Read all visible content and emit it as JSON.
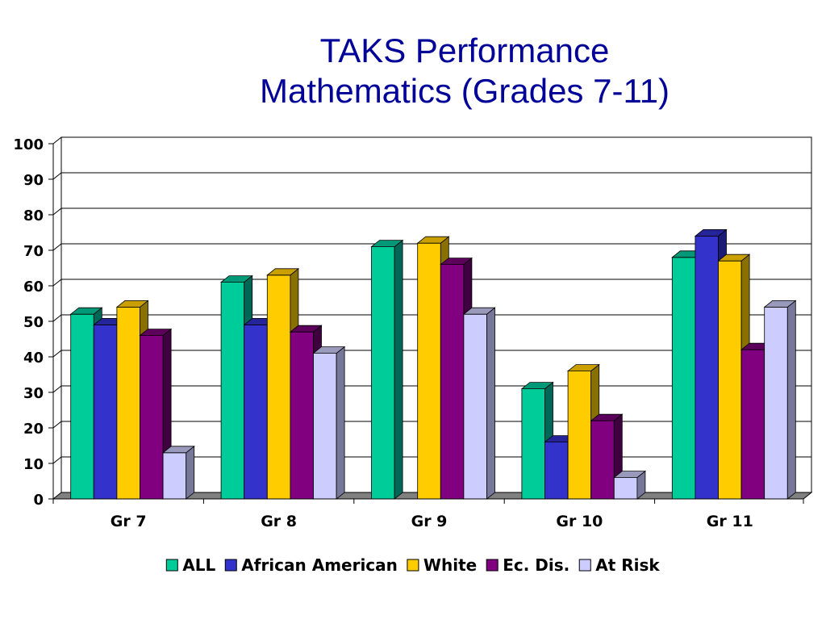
{
  "chart_data": {
    "type": "bar",
    "title": [
      "TAKS Performance",
      "Mathematics (Grades 7-11)"
    ],
    "categories": [
      "Gr 7",
      "Gr 8",
      "Gr 9",
      "Gr 10",
      "Gr 11"
    ],
    "ylim": [
      0,
      100
    ],
    "yticks": [
      0,
      10,
      20,
      30,
      40,
      50,
      60,
      70,
      80,
      90,
      100
    ],
    "grid": true,
    "legend_position": "bottom",
    "series": [
      {
        "name": "ALL",
        "values": [
          52,
          61,
          71,
          31,
          68
        ],
        "color": "#00cc99",
        "side": "#006655",
        "top": "#009977"
      },
      {
        "name": "African American",
        "values": [
          49,
          49,
          null,
          16,
          74
        ],
        "color": "#3333cc",
        "side": "#1a1a77",
        "top": "#252599"
      },
      {
        "name": "White",
        "values": [
          54,
          63,
          72,
          36,
          67
        ],
        "color": "#ffcc00",
        "side": "#8a7000",
        "top": "#c9a000"
      },
      {
        "name": "Ec. Dis.",
        "values": [
          46,
          47,
          66,
          22,
          42
        ],
        "color": "#800080",
        "side": "#3f003f",
        "top": "#5c005c"
      },
      {
        "name": "At Risk",
        "values": [
          13,
          41,
          52,
          6,
          54
        ],
        "color": "#ccccff",
        "side": "#77779a",
        "top": "#9999bb"
      }
    ]
  }
}
